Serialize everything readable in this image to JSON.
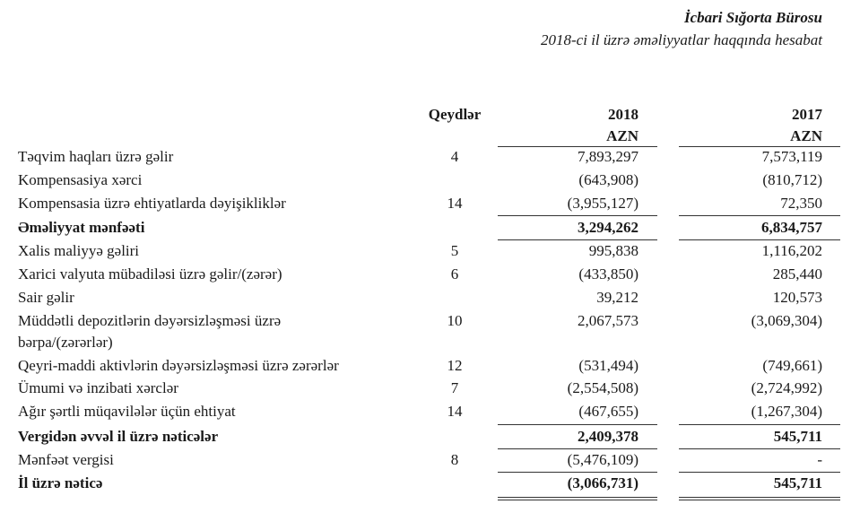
{
  "header": {
    "title": "İcbari Sığorta Bürosu",
    "subtitle": "2018-ci il üzrə əməliyyatlar haqqında hesabat"
  },
  "columns": {
    "notes": "Qeydlər",
    "year1": "2018",
    "year2": "2017",
    "currency1": "AZN",
    "currency2": "AZN"
  },
  "rows": [
    {
      "label": "Təqvim haqları üzrə gəlir",
      "note": "4",
      "v2018": "7,893,297",
      "v2017": "7,573,119",
      "bold": false
    },
    {
      "label": "Kompensasiya xərci",
      "note": "",
      "v2018": "(643,908)",
      "v2017": "(810,712)",
      "bold": false
    },
    {
      "label": "Kompensasia üzrə ehtiyatlarda dəyişikliklər",
      "note": "14",
      "v2018": "(3,955,127)",
      "v2017": "72,350",
      "bold": false
    },
    {
      "label": "Əməliyyat mənfəəti",
      "note": "",
      "v2018": "3,294,262",
      "v2017": "6,834,757",
      "bold": true
    },
    {
      "label": "Xalis maliyyə gəliri",
      "note": "5",
      "v2018": "995,838",
      "v2017": "1,116,202",
      "bold": false
    },
    {
      "label": "Xarici valyuta mübadiləsi üzrə gəlir/(zərər)",
      "note": "6",
      "v2018": "(433,850)",
      "v2017": "285,440",
      "bold": false
    },
    {
      "label": "Sair gəlir",
      "note": "",
      "v2018": "39,212",
      "v2017": "120,573",
      "bold": false
    },
    {
      "label": "Müddətli depozitlərin dəyərsizləşməsi üzrə",
      "label2": "bərpa/(zərərlər)",
      "note": "10",
      "v2018": "2,067,573",
      "v2017": "(3,069,304)",
      "bold": false
    },
    {
      "label": "Qeyri-maddi aktivlərin dəyərsizləşməsi üzrə zərərlər",
      "note": "12",
      "v2018": "(531,494)",
      "v2017": "(749,661)",
      "bold": false
    },
    {
      "label": "Ümumi və inzibati xərclər",
      "note": "7",
      "v2018": "(2,554,508)",
      "v2017": "(2,724,992)",
      "bold": false
    },
    {
      "label": "Ağır şərtli müqavilələr üçün ehtiyat",
      "note": "14",
      "v2018": "(467,655)",
      "v2017": "(1,267,304)",
      "bold": false
    },
    {
      "label": "Vergidən əvvəl il üzrə nəticələr",
      "note": "",
      "v2018": "2,409,378",
      "v2017": "545,711",
      "bold": true
    },
    {
      "label": "Mənfəət vergisi",
      "note": "8",
      "v2018": "(5,476,109)",
      "v2017": "-",
      "bold": false
    },
    {
      "label": "İl üzrə nəticə",
      "note": "",
      "v2018": "(3,066,731)",
      "v2017": "545,711",
      "bold": true
    }
  ]
}
